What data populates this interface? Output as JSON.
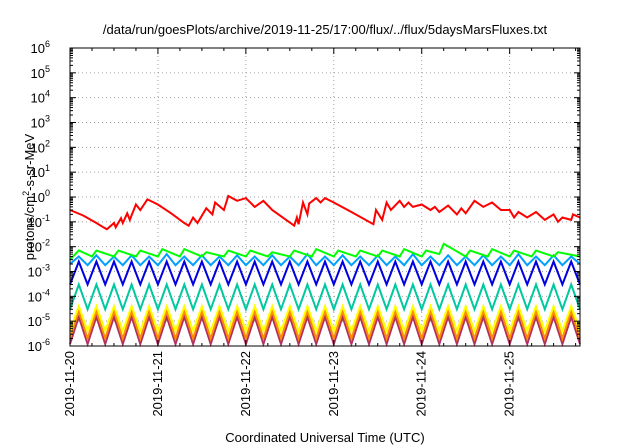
{
  "chart_data": {
    "type": "line",
    "title": "/data/run/goesPlots/archive/2019-11-25/17:00/flux/../flux/5daysMarsFluxes.txt",
    "xlabel": "Coordinated Universal Time (UTC)",
    "ylabel_parts": {
      "before": "protons/cm",
      "sup": "2",
      "after": "-s-sr-MeV"
    },
    "yscale": "log",
    "ylim": [
      1e-06,
      1000000.0
    ],
    "xlim": [
      "2019-11-20",
      "2019-11-25 20:00"
    ],
    "grid": true,
    "legend": "none",
    "y_ticks": [
      {
        "value": 1e-06,
        "base": "10",
        "exp": "-6"
      },
      {
        "value": 1e-05,
        "base": "10",
        "exp": "-5"
      },
      {
        "value": 0.0001,
        "base": "10",
        "exp": "-4"
      },
      {
        "value": 0.001,
        "base": "10",
        "exp": "-3"
      },
      {
        "value": 0.01,
        "base": "10",
        "exp": "-2"
      },
      {
        "value": 0.1,
        "base": "10",
        "exp": "-1"
      },
      {
        "value": 1,
        "base": "10",
        "exp": "0"
      },
      {
        "value": 10,
        "base": "10",
        "exp": "1"
      },
      {
        "value": 100,
        "base": "10",
        "exp": "2"
      },
      {
        "value": 1000,
        "base": "10",
        "exp": "3"
      },
      {
        "value": 10000,
        "base": "10",
        "exp": "4"
      },
      {
        "value": 100000,
        "base": "10",
        "exp": "5"
      },
      {
        "value": 1000000,
        "base": "10",
        "exp": "6"
      }
    ],
    "x_ticks": [
      {
        "day": 0,
        "label": "2019-11-20"
      },
      {
        "day": 1,
        "label": "2019-11-21"
      },
      {
        "day": 2,
        "label": "2019-11-22"
      },
      {
        "day": 3,
        "label": "2019-11-23"
      },
      {
        "day": 4,
        "label": "2019-11-24"
      },
      {
        "day": 5,
        "label": "2019-11-25"
      }
    ],
    "series": [
      {
        "color": "#ff0000",
        "day": [
          0.0,
          0.15,
          0.3,
          0.38,
          0.42,
          0.5,
          0.52,
          0.58,
          0.6,
          0.65,
          0.68,
          0.75,
          0.8,
          0.88,
          1.0,
          1.15,
          1.3,
          1.35,
          1.4,
          1.45,
          1.55,
          1.62,
          1.65,
          1.75,
          1.8,
          1.9,
          2.0,
          2.1,
          2.2,
          2.3,
          2.55,
          2.58,
          2.6,
          2.65,
          2.7,
          2.72,
          2.8,
          2.85,
          2.9,
          3.0,
          3.2,
          3.45,
          3.48,
          3.55,
          3.6,
          3.65,
          3.75,
          3.8,
          3.85,
          3.9,
          4.0,
          4.1,
          4.15,
          4.2,
          4.3,
          4.4,
          4.45,
          4.5,
          4.6,
          4.7,
          4.8,
          4.9,
          5.0,
          5.05,
          5.1,
          5.2,
          5.3,
          5.4,
          5.5,
          5.55,
          5.6,
          5.7,
          5.72,
          5.8
        ],
        "values": [
          0.3,
          0.18,
          0.09,
          0.06,
          0.05,
          0.09,
          0.06,
          0.14,
          0.09,
          0.22,
          0.12,
          0.5,
          0.3,
          0.8,
          0.5,
          0.22,
          0.09,
          0.07,
          0.15,
          0.09,
          0.35,
          0.2,
          0.6,
          0.3,
          1.1,
          0.7,
          0.9,
          0.4,
          0.7,
          0.3,
          0.07,
          0.15,
          0.08,
          0.6,
          0.2,
          0.55,
          0.9,
          0.6,
          0.9,
          0.6,
          0.25,
          0.08,
          0.3,
          0.12,
          0.6,
          0.3,
          0.7,
          0.4,
          0.6,
          0.4,
          0.5,
          0.3,
          0.4,
          0.25,
          0.45,
          0.2,
          0.35,
          0.22,
          0.7,
          0.4,
          0.6,
          0.3,
          0.3,
          0.15,
          0.25,
          0.15,
          0.25,
          0.12,
          0.2,
          0.1,
          0.15,
          0.12,
          0.2,
          0.15
        ]
      },
      {
        "color": "#00ff00",
        "day": [
          0.0,
          0.1,
          0.25,
          0.3,
          0.5,
          0.55,
          0.75,
          0.8,
          1.0,
          1.05,
          1.25,
          1.3,
          1.5,
          1.55,
          1.75,
          1.8,
          2.0,
          2.05,
          2.25,
          2.3,
          2.5,
          2.55,
          2.75,
          2.8,
          3.0,
          3.05,
          3.25,
          3.3,
          3.5,
          3.55,
          3.75,
          3.8,
          4.0,
          4.05,
          4.2,
          4.25,
          4.5,
          4.55,
          4.75,
          4.8,
          5.0,
          5.05,
          5.25,
          5.3,
          5.5,
          5.55,
          5.8
        ],
        "values": [
          0.003,
          0.007,
          0.004,
          0.007,
          0.004,
          0.007,
          0.004,
          0.007,
          0.004,
          0.008,
          0.004,
          0.008,
          0.004,
          0.006,
          0.004,
          0.007,
          0.004,
          0.007,
          0.004,
          0.006,
          0.004,
          0.007,
          0.004,
          0.008,
          0.004,
          0.007,
          0.004,
          0.007,
          0.004,
          0.007,
          0.004,
          0.008,
          0.004,
          0.007,
          0.005,
          0.013,
          0.004,
          0.007,
          0.004,
          0.008,
          0.004,
          0.007,
          0.004,
          0.007,
          0.004,
          0.006,
          0.004
        ]
      },
      {
        "color": "#00a0ff",
        "day": [
          0.0,
          0.1,
          0.2,
          0.3,
          0.4,
          0.5,
          0.6,
          0.7,
          0.8,
          0.9,
          1.0,
          1.1,
          1.2,
          1.3,
          1.4,
          1.5,
          1.6,
          1.7,
          1.8,
          1.9,
          2.0,
          2.1,
          2.2,
          2.3,
          2.4,
          2.5,
          2.6,
          2.7,
          2.8,
          2.9,
          3.0,
          3.1,
          3.2,
          3.3,
          3.4,
          3.5,
          3.6,
          3.7,
          3.8,
          3.9,
          4.0,
          4.1,
          4.2,
          4.3,
          4.4,
          4.5,
          4.6,
          4.7,
          4.8,
          4.9,
          5.0,
          5.1,
          5.2,
          5.3,
          5.4,
          5.5,
          5.6,
          5.7,
          5.8
        ],
        "values": [
          0.002,
          0.004,
          0.0018,
          0.0045,
          0.0018,
          0.004,
          0.0018,
          0.0045,
          0.0018,
          0.004,
          0.0018,
          0.005,
          0.0018,
          0.004,
          0.0018,
          0.0045,
          0.0018,
          0.004,
          0.0018,
          0.0045,
          0.0018,
          0.004,
          0.0018,
          0.0045,
          0.0018,
          0.004,
          0.0018,
          0.005,
          0.0018,
          0.004,
          0.0018,
          0.0045,
          0.0018,
          0.004,
          0.0018,
          0.0045,
          0.0018,
          0.004,
          0.0018,
          0.005,
          0.0018,
          0.004,
          0.0018,
          0.0045,
          0.0018,
          0.004,
          0.0018,
          0.0045,
          0.0018,
          0.004,
          0.0018,
          0.005,
          0.0018,
          0.004,
          0.0018,
          0.0045,
          0.0018,
          0.004,
          0.002
        ]
      },
      {
        "color": "#0000e0",
        "day": [
          0.0,
          0.1,
          0.2,
          0.3,
          0.4,
          0.5,
          0.6,
          0.7,
          0.8,
          0.9,
          1.0,
          1.1,
          1.2,
          1.3,
          1.4,
          1.5,
          1.6,
          1.7,
          1.8,
          1.9,
          2.0,
          2.1,
          2.2,
          2.3,
          2.4,
          2.5,
          2.6,
          2.7,
          2.8,
          2.9,
          3.0,
          3.1,
          3.2,
          3.3,
          3.4,
          3.5,
          3.6,
          3.7,
          3.8,
          3.9,
          4.0,
          4.1,
          4.2,
          4.3,
          4.4,
          4.5,
          4.6,
          4.7,
          4.8,
          4.9,
          5.0,
          5.1,
          5.2,
          5.3,
          5.4,
          5.5,
          5.6,
          5.7,
          5.8
        ],
        "values": [
          0.0003,
          0.0025,
          0.0003,
          0.0025,
          0.0003,
          0.0025,
          0.0003,
          0.0025,
          0.0003,
          0.0025,
          0.0003,
          0.0025,
          0.0003,
          0.0025,
          0.0003,
          0.0025,
          0.0003,
          0.0025,
          0.0003,
          0.0025,
          0.0003,
          0.0025,
          0.0003,
          0.0025,
          0.0003,
          0.0025,
          0.0003,
          0.0025,
          0.0003,
          0.0025,
          0.0003,
          0.0025,
          0.0003,
          0.0025,
          0.0003,
          0.0025,
          0.0003,
          0.0025,
          0.0003,
          0.0025,
          0.0003,
          0.0025,
          0.0003,
          0.0025,
          0.0003,
          0.0025,
          0.0003,
          0.0025,
          0.0003,
          0.0025,
          0.0003,
          0.0025,
          0.0003,
          0.0025,
          0.0003,
          0.0025,
          0.0003,
          0.0025,
          0.0003
        ]
      },
      {
        "color": "#00c8a0",
        "day": [
          0.0,
          0.1,
          0.2,
          0.3,
          0.4,
          0.5,
          0.6,
          0.7,
          0.8,
          0.9,
          1.0,
          1.1,
          1.2,
          1.3,
          1.4,
          1.5,
          1.6,
          1.7,
          1.8,
          1.9,
          2.0,
          2.1,
          2.2,
          2.3,
          2.4,
          2.5,
          2.6,
          2.7,
          2.8,
          2.9,
          3.0,
          3.1,
          3.2,
          3.3,
          3.4,
          3.5,
          3.6,
          3.7,
          3.8,
          3.9,
          4.0,
          4.1,
          4.2,
          4.3,
          4.4,
          4.5,
          4.6,
          4.7,
          4.8,
          4.9,
          5.0,
          5.1,
          5.2,
          5.3,
          5.4,
          5.5,
          5.6,
          5.7,
          5.8
        ],
        "values": [
          3e-05,
          0.0003,
          3e-05,
          0.0003,
          3e-05,
          0.0003,
          3e-05,
          0.0003,
          3e-05,
          0.0003,
          3e-05,
          0.0003,
          3e-05,
          0.0003,
          3e-05,
          0.0003,
          3e-05,
          0.0003,
          3e-05,
          0.0003,
          3e-05,
          0.0003,
          3e-05,
          0.0003,
          3e-05,
          0.0003,
          3e-05,
          0.0003,
          3e-05,
          0.0003,
          3e-05,
          0.0003,
          3e-05,
          0.0003,
          3e-05,
          0.0003,
          3e-05,
          0.0003,
          3e-05,
          0.0003,
          3e-05,
          0.0003,
          3e-05,
          0.0003,
          3e-05,
          0.0003,
          3e-05,
          0.0003,
          3e-05,
          0.0003,
          3e-05,
          0.0003,
          3e-05,
          0.0003,
          3e-05,
          0.0003,
          3e-05,
          0.0003,
          3e-05
        ]
      },
      {
        "color": "#ffff00",
        "day": [
          0.0,
          0.1,
          0.2,
          0.3,
          0.4,
          0.5,
          0.6,
          0.7,
          0.8,
          0.9,
          1.0,
          1.1,
          1.2,
          1.3,
          1.4,
          1.5,
          1.6,
          1.7,
          1.8,
          1.9,
          2.0,
          2.1,
          2.2,
          2.3,
          2.4,
          2.5,
          2.6,
          2.7,
          2.8,
          2.9,
          3.0,
          3.1,
          3.2,
          3.3,
          3.4,
          3.5,
          3.6,
          3.7,
          3.8,
          3.9,
          4.0,
          4.1,
          4.2,
          4.3,
          4.4,
          4.5,
          4.6,
          4.7,
          4.8,
          4.9,
          5.0,
          5.1,
          5.2,
          5.3,
          5.4,
          5.5,
          5.6,
          5.7,
          5.8
        ],
        "values": [
          4e-06,
          4e-05,
          4e-06,
          4e-05,
          4e-06,
          4e-05,
          4e-06,
          4e-05,
          4e-06,
          4e-05,
          4e-06,
          4e-05,
          4e-06,
          4e-05,
          4e-06,
          4e-05,
          4e-06,
          4e-05,
          4e-06,
          4e-05,
          4e-06,
          4e-05,
          4e-06,
          4e-05,
          4e-06,
          4e-05,
          4e-06,
          4e-05,
          4e-06,
          4e-05,
          4e-06,
          4e-05,
          4e-06,
          4e-05,
          4e-06,
          4e-05,
          4e-06,
          4e-05,
          4e-06,
          4e-05,
          4e-06,
          4e-05,
          4e-06,
          4e-05,
          4e-06,
          4e-05,
          4e-06,
          4e-05,
          4e-06,
          4e-05,
          4e-06,
          4e-05,
          4e-06,
          4e-05,
          4e-06,
          4e-05,
          4e-06,
          4e-05,
          4e-06
        ]
      },
      {
        "color": "#ff8c00",
        "day": [
          0.0,
          0.1,
          0.2,
          0.3,
          0.4,
          0.5,
          0.6,
          0.7,
          0.8,
          0.9,
          1.0,
          1.1,
          1.2,
          1.3,
          1.4,
          1.5,
          1.6,
          1.7,
          1.8,
          1.9,
          2.0,
          2.1,
          2.2,
          2.3,
          2.4,
          2.5,
          2.6,
          2.7,
          2.8,
          2.9,
          3.0,
          3.1,
          3.2,
          3.3,
          3.4,
          3.5,
          3.6,
          3.7,
          3.8,
          3.9,
          4.0,
          4.1,
          4.2,
          4.3,
          4.4,
          4.5,
          4.6,
          4.7,
          4.8,
          4.9,
          5.0,
          5.1,
          5.2,
          5.3,
          5.4,
          5.5,
          5.6,
          5.7,
          5.8
        ],
        "values": [
          2e-06,
          2.5e-05,
          2e-06,
          2.5e-05,
          2e-06,
          2.5e-05,
          2e-06,
          2.5e-05,
          2e-06,
          2.5e-05,
          2e-06,
          2.5e-05,
          2e-06,
          2.5e-05,
          2e-06,
          2.5e-05,
          2e-06,
          2.5e-05,
          2e-06,
          2.5e-05,
          2e-06,
          2.5e-05,
          2e-06,
          2.5e-05,
          2e-06,
          2.5e-05,
          2e-06,
          2.5e-05,
          2e-06,
          2.5e-05,
          2e-06,
          2.5e-05,
          2e-06,
          2.5e-05,
          2e-06,
          2.5e-05,
          2e-06,
          2.5e-05,
          2e-06,
          2.5e-05,
          2e-06,
          2.5e-05,
          2e-06,
          2.5e-05,
          2e-06,
          2.5e-05,
          2e-06,
          2.5e-05,
          2e-06,
          2.5e-05,
          2e-06,
          2.5e-05,
          2e-06,
          2.5e-05,
          2e-06,
          2.5e-05,
          2e-06,
          2.5e-05,
          2e-06
        ]
      },
      {
        "color": "#b03060",
        "day": [
          0.0,
          0.1,
          0.2,
          0.3,
          0.4,
          0.5,
          0.6,
          0.7,
          0.8,
          0.9,
          1.0,
          1.1,
          1.2,
          1.3,
          1.4,
          1.5,
          1.6,
          1.7,
          1.8,
          1.9,
          2.0,
          2.1,
          2.2,
          2.3,
          2.4,
          2.5,
          2.6,
          2.7,
          2.8,
          2.9,
          3.0,
          3.1,
          3.2,
          3.3,
          3.4,
          3.5,
          3.6,
          3.7,
          3.8,
          3.9,
          4.0,
          4.1,
          4.2,
          4.3,
          4.4,
          4.5,
          4.6,
          4.7,
          4.8,
          4.9,
          5.0,
          5.1,
          5.2,
          5.3,
          5.4,
          5.5,
          5.6,
          5.7,
          5.8
        ],
        "values": [
          1.2e-06,
          1.5e-05,
          1.2e-06,
          1.5e-05,
          1.2e-06,
          1.5e-05,
          1.2e-06,
          1.5e-05,
          1.2e-06,
          1.5e-05,
          1.2e-06,
          1.5e-05,
          1.2e-06,
          1.5e-05,
          1.2e-06,
          1.5e-05,
          1.2e-06,
          1.5e-05,
          1.2e-06,
          1.5e-05,
          1.2e-06,
          1.5e-05,
          1.2e-06,
          1.5e-05,
          1.2e-06,
          1.5e-05,
          1.2e-06,
          1.5e-05,
          1.2e-06,
          1.5e-05,
          1.2e-06,
          1.5e-05,
          1.2e-06,
          1.5e-05,
          1.2e-06,
          1.5e-05,
          1.2e-06,
          1.5e-05,
          1.2e-06,
          1.5e-05,
          1.2e-06,
          1.5e-05,
          1.2e-06,
          1.5e-05,
          1.2e-06,
          1.5e-05,
          1.2e-06,
          1.5e-05,
          1.2e-06,
          1.5e-05,
          1.2e-06,
          1.5e-05,
          1.2e-06,
          1.5e-05,
          1.2e-06,
          1.5e-05,
          1.2e-06,
          1.5e-05,
          1.2e-06
        ]
      }
    ]
  }
}
